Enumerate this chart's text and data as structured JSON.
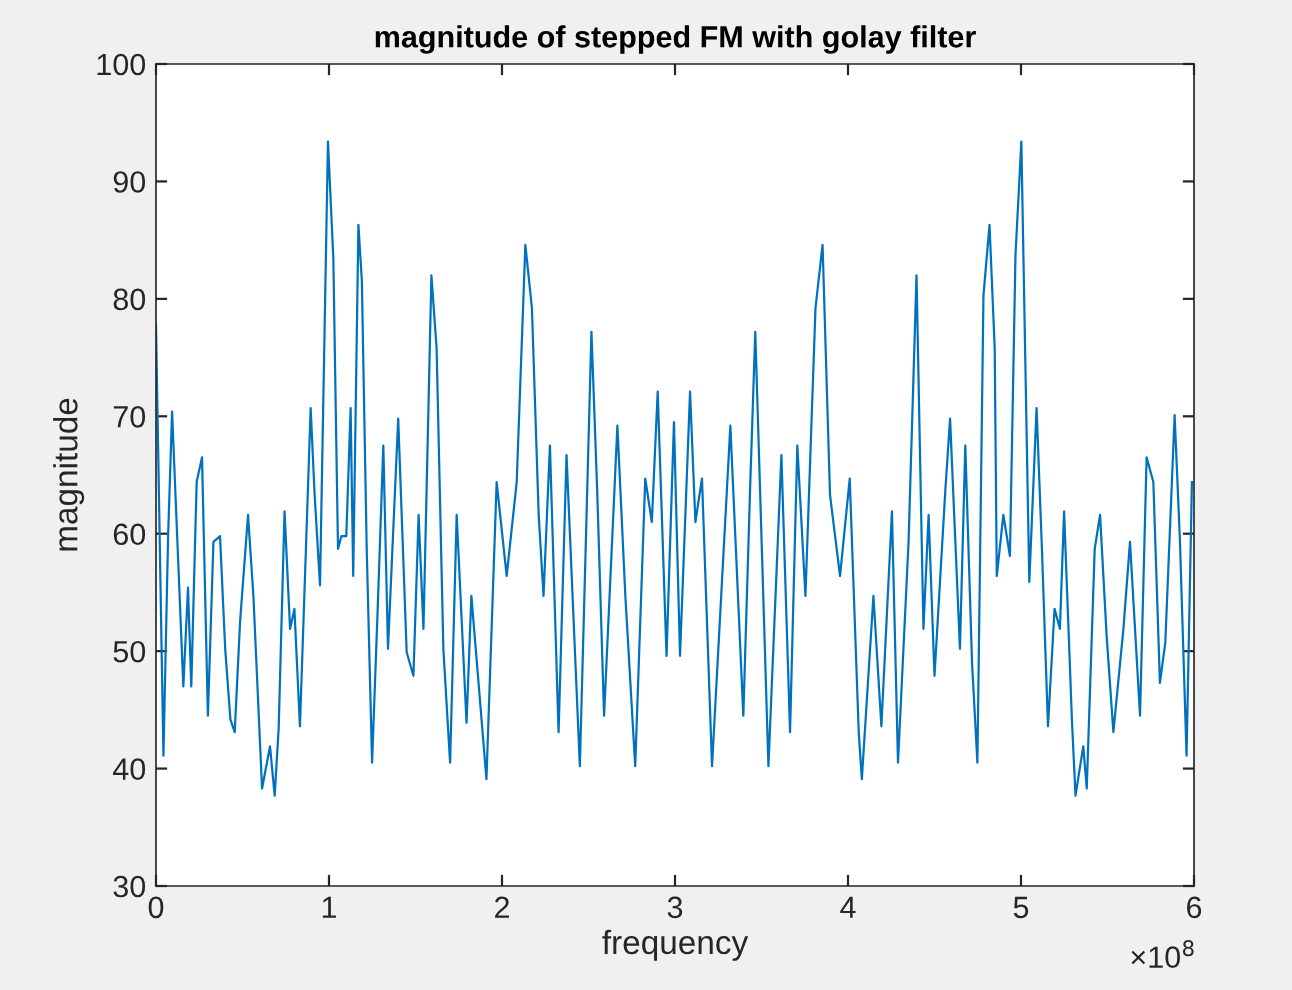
{
  "chart_data": {
    "type": "line",
    "title": "magnitude of stepped FM with golay filter",
    "xlabel": "frequency",
    "ylabel": "magnitude",
    "x": [
      0,
      0.043,
      0.07,
      0.093,
      0.127,
      0.158,
      0.185,
      0.204,
      0.235,
      0.266,
      0.3,
      0.332,
      0.37,
      0.4,
      0.43,
      0.455,
      0.486,
      0.532,
      0.563,
      0.613,
      0.659,
      0.686,
      0.709,
      0.743,
      0.775,
      0.8,
      0.832,
      0.894,
      0.917,
      0.948,
      0.994,
      1.025,
      1.052,
      1.072,
      1.1,
      1.125,
      1.14,
      1.17,
      1.19,
      1.218,
      1.249,
      1.28,
      1.314,
      1.341,
      1.4,
      1.449,
      1.488,
      1.518,
      1.546,
      1.592,
      1.622,
      1.661,
      1.7,
      1.738,
      1.795,
      1.823,
      1.88,
      1.91,
      1.969,
      2.027,
      2.085,
      2.135,
      2.173,
      2.212,
      2.24,
      2.277,
      2.327,
      2.373,
      2.45,
      2.517,
      2.55,
      2.59,
      2.667,
      2.713,
      2.77,
      2.828,
      2.866,
      2.9,
      2.951,
      2.994,
      3.029,
      3.087,
      3.118,
      3.156,
      3.214,
      3.32,
      3.395,
      3.434,
      3.464,
      3.54,
      3.615,
      3.665,
      3.707,
      3.754,
      3.812,
      3.853,
      3.896,
      3.954,
      4.01,
      4.062,
      4.08,
      4.147,
      4.193,
      4.254,
      4.289,
      4.35,
      4.396,
      4.436,
      4.466,
      4.5,
      4.563,
      4.59,
      4.647,
      4.678,
      4.717,
      4.748,
      4.783,
      4.818,
      4.848,
      4.86,
      4.898,
      4.936,
      4.968,
      5.002,
      5.048,
      5.09,
      5.121,
      5.156,
      5.194,
      5.225,
      5.249,
      5.295,
      5.315,
      5.36,
      5.38,
      5.426,
      5.457,
      5.495,
      5.534,
      5.592,
      5.63,
      5.688,
      5.726,
      5.765,
      5.803,
      5.834,
      5.888,
      5.919,
      5.957,
      5.988
    ],
    "series": [
      {
        "color": "#0072bd",
        "values": [
          77.8,
          41.1,
          59.8,
          70.4,
          58.1,
          47.0,
          55.4,
          47.0,
          64.4,
          66.5,
          44.5,
          59.3,
          59.8,
          50.2,
          44.2,
          43.1,
          52.5,
          61.6,
          54.7,
          38.3,
          41.9,
          37.7,
          43.4,
          61.9,
          51.9,
          53.6,
          43.6,
          70.7,
          63.3,
          55.6,
          93.4,
          83.5,
          58.7,
          59.8,
          59.8,
          70.7,
          56.4,
          86.3,
          81.5,
          58.7,
          40.5,
          53.0,
          67.5,
          50.2,
          69.8,
          49.9,
          47.9,
          61.6,
          51.9,
          82.0,
          75.8,
          50.2,
          40.5,
          61.6,
          43.9,
          54.7,
          44.5,
          39.1,
          64.4,
          56.4,
          64.4,
          84.6,
          79.2,
          61.6,
          54.7,
          67.5,
          43.1,
          66.7,
          40.2,
          77.2,
          63.8,
          44.5,
          69.2,
          54.7,
          40.2,
          64.7,
          61.0,
          72.1,
          49.6,
          69.5,
          49.6,
          72.1,
          61.0,
          64.7,
          40.2,
          69.2,
          44.5,
          63.8,
          77.2,
          40.2,
          66.7,
          43.1,
          67.5,
          54.7,
          79.2,
          84.6,
          63.3,
          56.4,
          64.7,
          43.1,
          39.1,
          54.7,
          43.6,
          61.9,
          40.5,
          59.3,
          82.0,
          51.9,
          61.6,
          47.9,
          63.8,
          69.8,
          50.2,
          67.5,
          49.0,
          40.5,
          80.3,
          86.3,
          75.8,
          56.4,
          61.6,
          58.1,
          83.7,
          93.4,
          55.9,
          70.7,
          58.7,
          43.6,
          53.6,
          51.9,
          61.9,
          43.9,
          37.7,
          41.9,
          38.3,
          58.7,
          61.6,
          51.3,
          43.1,
          51.9,
          59.3,
          44.5,
          66.5,
          64.4,
          47.3,
          50.7,
          70.1,
          59.3,
          41.1,
          64.4
        ]
      }
    ],
    "xlim": [
      0,
      6
    ],
    "xticks": [
      0,
      1,
      2,
      3,
      4,
      5,
      6
    ],
    "ylim": [
      30,
      100
    ],
    "yticks": [
      30,
      40,
      50,
      60,
      70,
      80,
      90,
      100
    ],
    "grid": false,
    "legend": false,
    "marker": "none",
    "line_style": "solid",
    "annotations": [
      "×10$^{8}$"
    ]
  }
}
